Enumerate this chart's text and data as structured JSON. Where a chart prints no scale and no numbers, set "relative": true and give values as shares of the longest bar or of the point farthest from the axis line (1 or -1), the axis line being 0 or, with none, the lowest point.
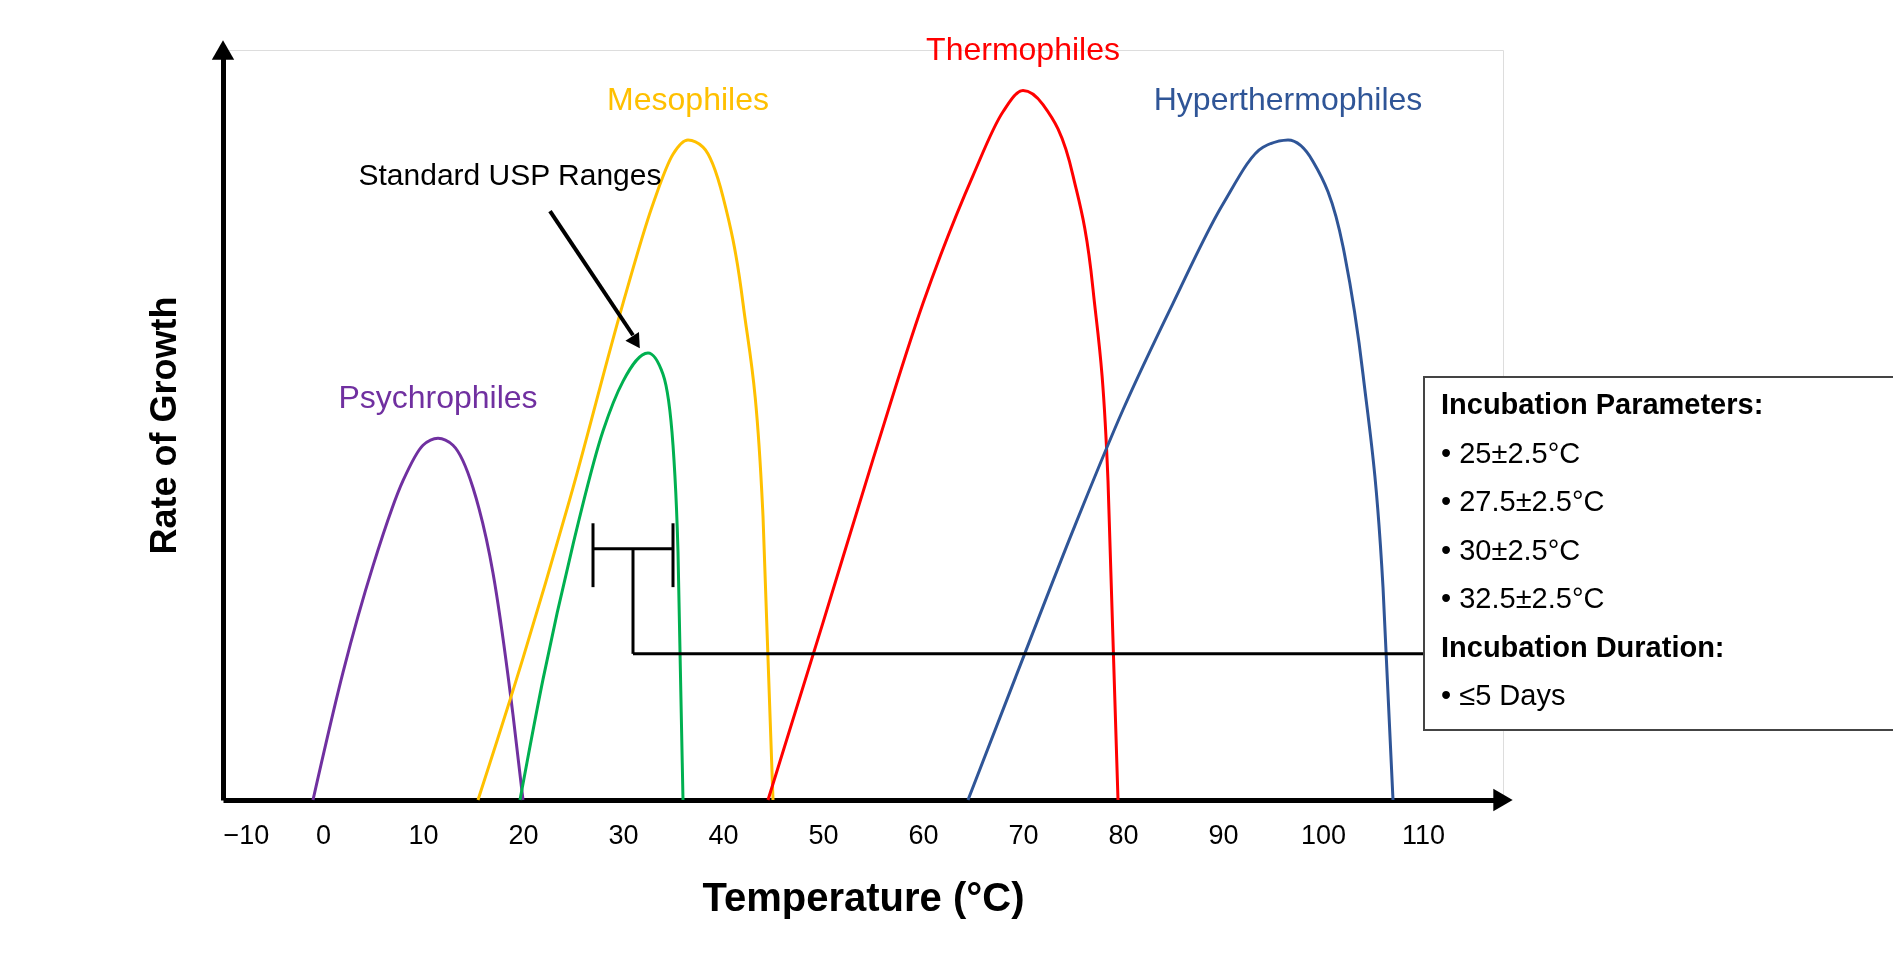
{
  "chart_data": {
    "type": "line",
    "relative": true,
    "xlabel": "Temperature (°C)",
    "ylabel": "Rate of Growth",
    "xlim": [
      -10,
      118
    ],
    "xticks": [
      -10,
      0,
      10,
      20,
      30,
      40,
      50,
      60,
      70,
      80,
      90,
      100,
      110
    ],
    "grid": false,
    "legend": false,
    "series": [
      {
        "name": "Psychrophiles",
        "color": "#7030a0",
        "x": [
          -1,
          2,
          5,
          8,
          10,
          11.5,
          13,
          15,
          17,
          19,
          20
        ],
        "values": [
          0,
          0.18,
          0.33,
          0.45,
          0.5,
          0.51,
          0.5,
          0.44,
          0.32,
          0.12,
          0
        ]
      },
      {
        "name": "Mesophiles",
        "color": "#ffc000",
        "x": [
          15.5,
          20,
          25,
          30,
          33,
          35,
          36.5,
          38,
          40,
          42,
          44,
          45
        ],
        "values": [
          0,
          0.2,
          0.44,
          0.7,
          0.84,
          0.91,
          0.93,
          0.92,
          0.85,
          0.7,
          0.4,
          0
        ]
      },
      {
        "color": "#00b050",
        "x": [
          19.7,
          22,
          25,
          28,
          30,
          32.5,
          34,
          35,
          35.5,
          36
        ],
        "values": [
          0,
          0.17,
          0.36,
          0.52,
          0.59,
          0.63,
          0.6,
          0.5,
          0.35,
          0
        ]
      },
      {
        "name": "Thermophiles",
        "color": "#ff0000",
        "x": [
          44.5,
          50,
          55,
          60,
          65,
          68,
          70,
          72,
          75,
          77,
          78.5,
          79.5
        ],
        "values": [
          0,
          0.25,
          0.48,
          0.7,
          0.88,
          0.97,
          1,
          0.98,
          0.88,
          0.72,
          0.45,
          0
        ]
      },
      {
        "name": "Hyperthermophiles",
        "color": "#2f5597",
        "x": [
          64.5,
          70,
          75,
          80,
          85,
          90,
          94,
          96.5,
          99,
          102,
          104,
          106,
          107
        ],
        "values": [
          0,
          0.2,
          0.38,
          0.55,
          0.7,
          0.84,
          0.92,
          0.93,
          0.9,
          0.78,
          0.6,
          0.3,
          0
        ]
      }
    ],
    "annotations": [
      "Standard USP Ranges",
      "Incubation Parameters:",
      "•    25±2.5°C",
      "•    27.5±2.5°C",
      "•    30±2.5°C",
      "•    32.5±2.5°C",
      "Incubation Duration:",
      "•    ≤5 Days"
    ]
  }
}
